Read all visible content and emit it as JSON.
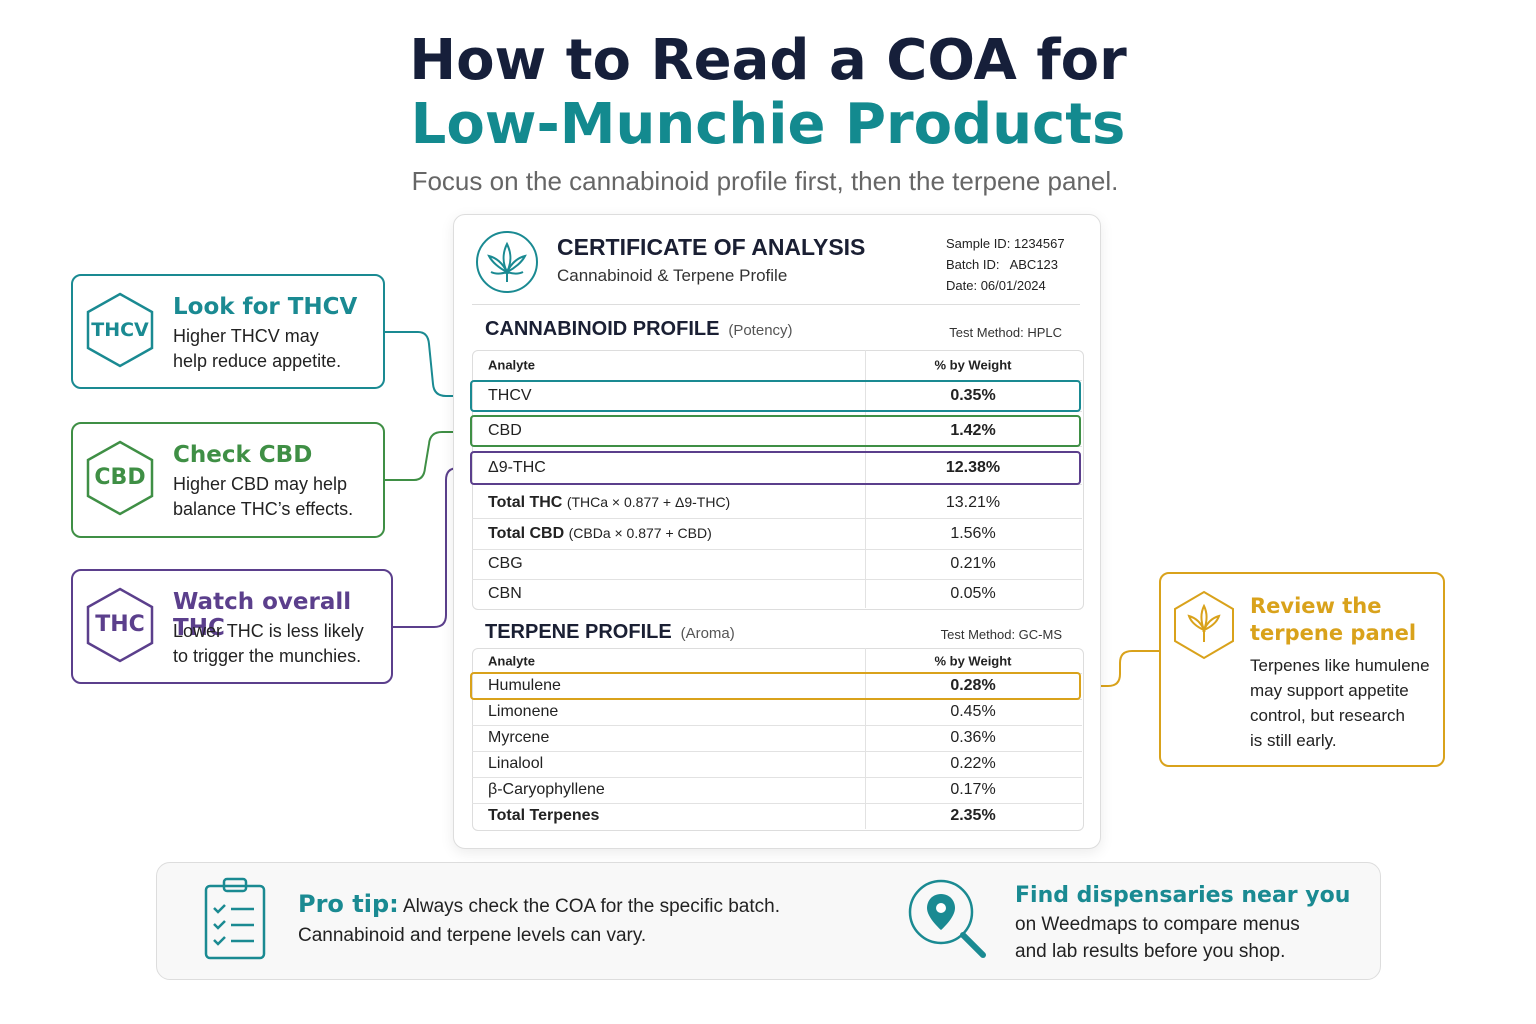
{
  "header": {
    "title_line1": "How to Read a COA for",
    "title_line2": "Low-Munchie Products",
    "subtitle": "Focus on the cannabinoid profile first, then the terpene panel."
  },
  "coa": {
    "title": "CERTIFICATE OF ANALYSIS",
    "subtitle": "Cannabinoid & Terpene Profile",
    "sample_id_label": "Sample ID:",
    "sample_id": "1234567",
    "batch_id_label": "Batch ID:",
    "batch_id": "ABC123",
    "date_label": "Date:",
    "date": "06/01/2024"
  },
  "cannabinoid": {
    "title": "CANNABINOID PROFILE",
    "note": "(Potency)",
    "method": "Test Method: HPLC",
    "columns": [
      "Analyte",
      "% by Weight"
    ],
    "rows": [
      {
        "analyte": "THCV",
        "value": "0.35%",
        "highlight": "#1a8a92"
      },
      {
        "analyte": "CBD",
        "value": "1.42%",
        "highlight": "#3f8f45"
      },
      {
        "analyte": "Δ9-THC",
        "value": "12.38%",
        "highlight": "#5b3f8c"
      },
      {
        "analyte": "Total THC",
        "detail": "(THCa × 0.877 + Δ9-THC)",
        "value": "13.21%"
      },
      {
        "analyte": "Total CBD",
        "detail": "(CBDa × 0.877 + CBD)",
        "value": "1.56%"
      },
      {
        "analyte": "CBG",
        "value": "0.21%"
      },
      {
        "analyte": "CBN",
        "value": "0.05%"
      }
    ]
  },
  "terpene": {
    "title": "TERPENE PROFILE",
    "note": "(Aroma)",
    "method": "Test Method: GC-MS",
    "columns": [
      "Analyte",
      "% by Weight"
    ],
    "rows": [
      {
        "analyte": "Humulene",
        "value": "0.28%",
        "highlight": "#d9a21b"
      },
      {
        "analyte": "Limonene",
        "value": "0.45%"
      },
      {
        "analyte": "Myrcene",
        "value": "0.36%"
      },
      {
        "analyte": "Linalool",
        "value": "0.22%"
      },
      {
        "analyte": "β-Caryophyllene",
        "value": "0.17%"
      },
      {
        "analyte": "Total Terpenes",
        "value": "2.35%",
        "bold": true
      }
    ]
  },
  "callouts": [
    {
      "badge": "THCV",
      "title": "Look for THCV",
      "lines": [
        "Higher THCV may",
        "help reduce appetite."
      ],
      "color": "#1a8a92"
    },
    {
      "badge": "CBD",
      "title": "Check CBD",
      "lines": [
        "Higher CBD may help",
        "balance THC’s effects."
      ],
      "color": "#3f8f45"
    },
    {
      "badge": "THC",
      "title": "Watch overall THC",
      "lines": [
        "Lower THC is less likely",
        "to trigger the munchies."
      ],
      "color": "#5b3f8c"
    },
    {
      "title_lines": [
        "Review the",
        "terpene panel"
      ],
      "lines": [
        "Terpenes like humulene",
        "may support appetite",
        "control, but research",
        "is still early."
      ],
      "color": "#d9a21b"
    }
  ],
  "footer": {
    "pro_tip_label": "Pro tip:",
    "pro_tip_lines": [
      "Always check the COA for the specific batch.",
      "Cannabinoid and terpene levels can vary."
    ],
    "find_title": "Find dispensaries near you",
    "find_lines": [
      "on Weedmaps to compare menus",
      "and lab results before you shop."
    ]
  }
}
